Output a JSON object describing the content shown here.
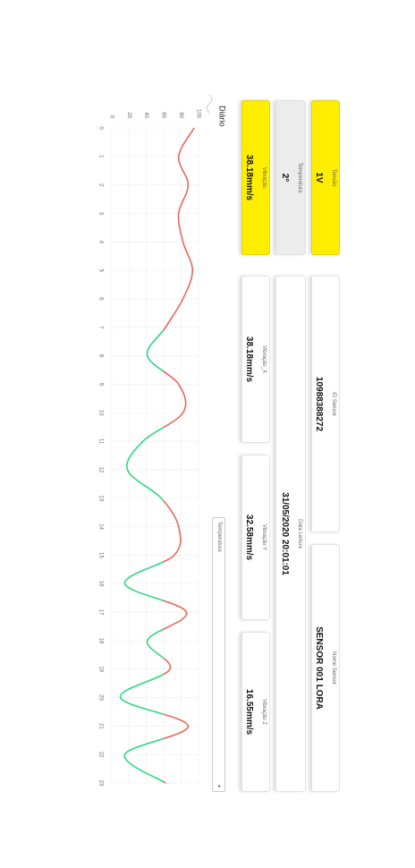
{
  "cards": [
    {
      "label": "Tensão",
      "value": "1V"
    },
    {
      "label": "ID Sensor",
      "value": "10988388272"
    },
    {
      "label": "Nome Sensor",
      "value": "SENSOR 001 LORA"
    },
    {
      "label": "Temperatura",
      "value": "2°"
    },
    {
      "label": "Data Leitura",
      "value": "31/05/2020 20:01:01"
    },
    {
      "label": "Vibração",
      "value": "38.18mm/s"
    },
    {
      "label": "Vibração_X",
      "value": "38.18mm/s"
    },
    {
      "label": "Vibração Y",
      "value": "32.58mm/s"
    },
    {
      "label": "Vibração Z",
      "value": "16.55mm/s"
    }
  ],
  "dropdown": "Temperatura",
  "chart_data": {
    "type": "line",
    "title": "Diário",
    "x": [
      0,
      1,
      2,
      3,
      4,
      5,
      6,
      7,
      8,
      9,
      10,
      11,
      12,
      13,
      14,
      15,
      16,
      17,
      18,
      19,
      20,
      21,
      22,
      23
    ],
    "xlim": [
      0,
      23
    ],
    "xticks": [
      0,
      1,
      2,
      3,
      4,
      5,
      6,
      7,
      8,
      9,
      10,
      11,
      12,
      13,
      14,
      15,
      16,
      17,
      18,
      19,
      20,
      21,
      22,
      23
    ],
    "ylim": [
      0,
      100
    ],
    "yticks": [
      0,
      20,
      40,
      60,
      80,
      100
    ],
    "grid": true,
    "threshold": 60,
    "series": [
      {
        "color": "#e8675b",
        "color_below": "#2fd680",
        "values": [
          95,
          77,
          88,
          77,
          82,
          93,
          82,
          62,
          41,
          77,
          82,
          36,
          18,
          57,
          77,
          72,
          15,
          86,
          41,
          67,
          10,
          88,
          15,
          62
        ]
      }
    ]
  }
}
